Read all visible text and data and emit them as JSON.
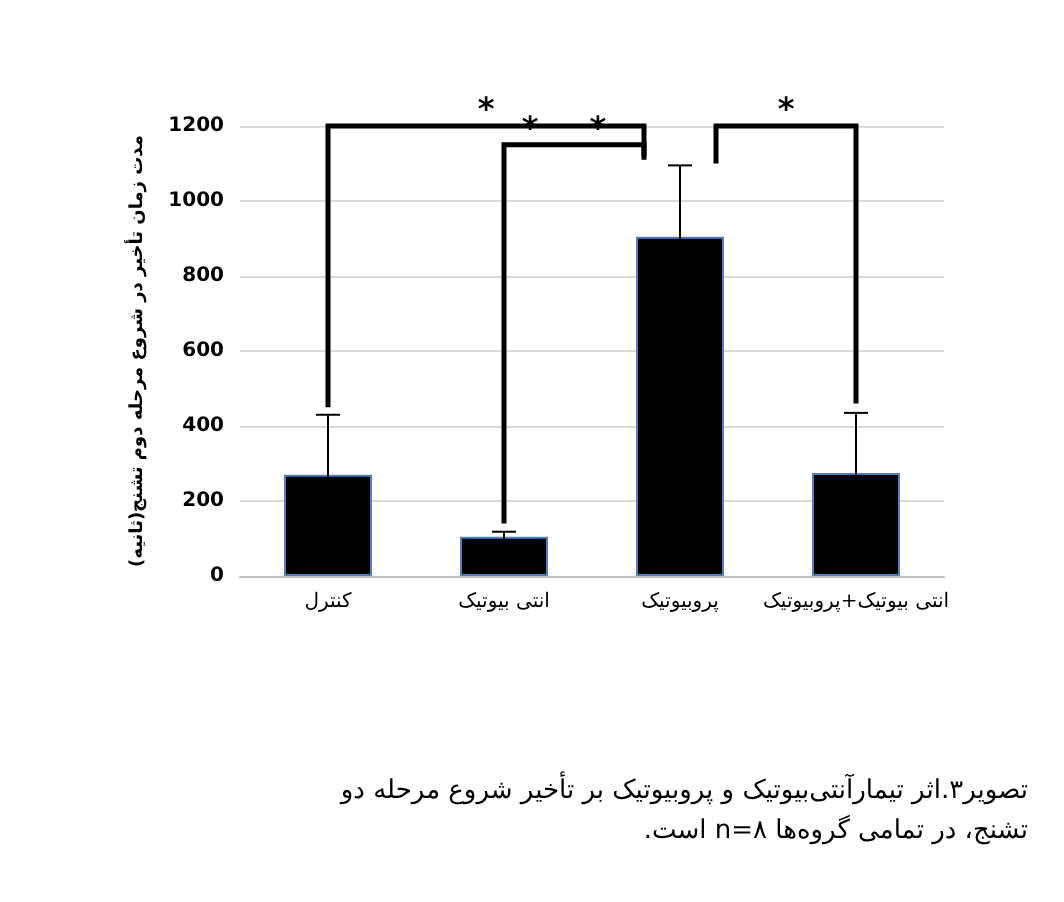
{
  "chart_data": {
    "type": "bar",
    "ylabel": "مدت زمان تأخیر در شروع مرحله دوم تشنج(ثانیه)",
    "categories": [
      "کنترل",
      "انتی بیوتیک",
      "پروبیوتیک",
      "انتی بیوتیک+پروبیوتیک"
    ],
    "values": [
      270,
      105,
      905,
      275
    ],
    "errors": [
      160,
      13,
      190,
      160
    ],
    "color": "#000000",
    "ylim": [
      0,
      1200
    ],
    "yticks": [
      0,
      200,
      400,
      600,
      800,
      1000,
      1200
    ],
    "grid": "y",
    "annotations": [
      "*",
      "* *",
      "*",
      "تصویر۳.اثر تیمارآنتی‌بیوتیک و پروبیوتیک بر تأخیر شروع مرحله دو تشنج، در تمامی گروه‌ها n=۸ است."
    ]
  }
}
